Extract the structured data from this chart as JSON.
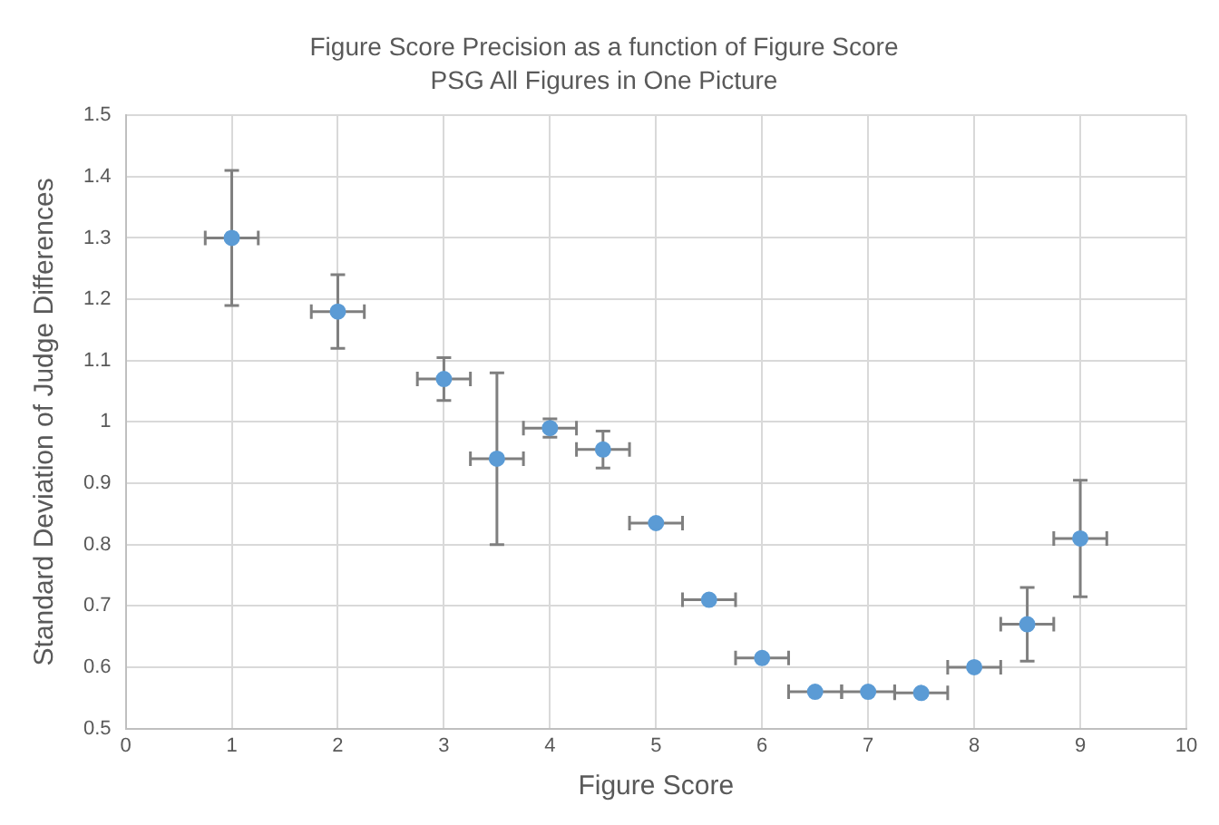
{
  "chart_data": {
    "type": "scatter",
    "title": "Figure Score Precision as a function of Figure Score",
    "subtitle": "PSG All Figures in One Picture",
    "xlabel": "Figure Score",
    "ylabel": "Standard Deviation of Judge Differences",
    "x": [
      1,
      2,
      3,
      3.5,
      4,
      4.5,
      5,
      5.5,
      6,
      6.5,
      7,
      7.5,
      8,
      8.5,
      9
    ],
    "series": [
      {
        "color": "#5b9bd5",
        "values": [
          1.3,
          1.18,
          1.07,
          0.94,
          0.99,
          0.955,
          0.835,
          0.71,
          0.615,
          0.56,
          0.56,
          0.558,
          0.6,
          0.67,
          0.81
        ],
        "errors": [
          0.11,
          0.06,
          0.035,
          0.14,
          0.015,
          0.03,
          null,
          null,
          null,
          null,
          null,
          null,
          null,
          0.06,
          0.095
        ],
        "xerrors": [
          0.25,
          0.25,
          0.25,
          0.25,
          0.25,
          0.25,
          0.25,
          0.25,
          0.25,
          0.25,
          0.25,
          0.25,
          0.25,
          0.25,
          0.25
        ]
      }
    ],
    "xlim": [
      0,
      10
    ],
    "xticks": [
      0,
      1,
      2,
      3,
      4,
      5,
      6,
      7,
      8,
      9,
      10
    ],
    "ylim": [
      0.5,
      1.5
    ],
    "yticks": [
      0.5,
      0.6,
      0.7,
      0.8,
      0.9,
      1,
      1.1,
      1.2,
      1.3,
      1.4,
      1.5
    ],
    "grid": true,
    "legend": false,
    "marker": "circle"
  }
}
